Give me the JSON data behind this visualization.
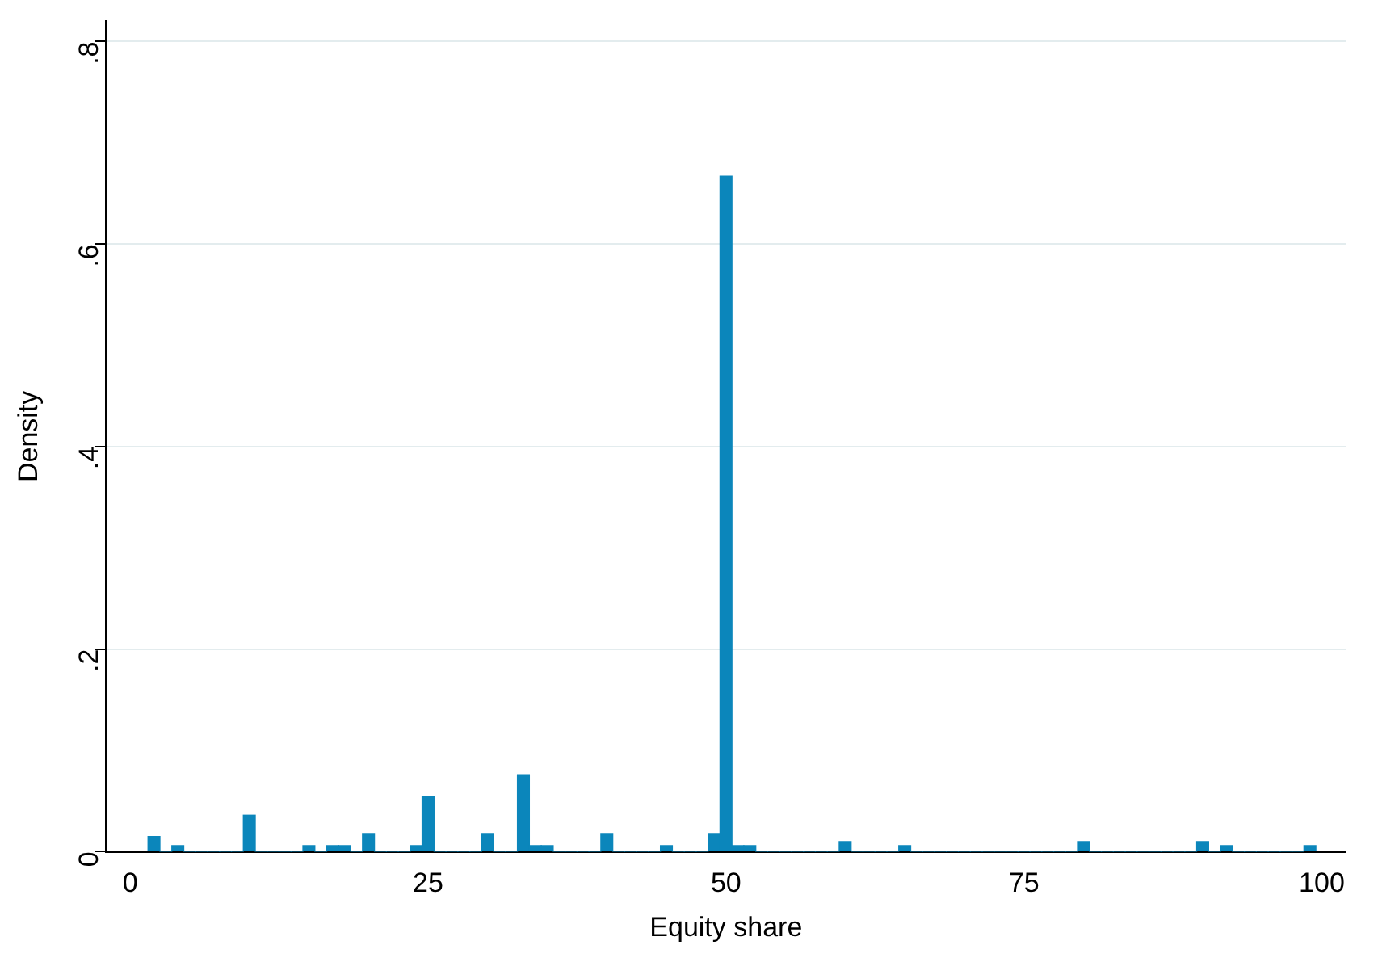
{
  "chart_data": {
    "type": "histogram",
    "xlabel": "Equity share",
    "ylabel": "Density",
    "color": "#0b86bb",
    "bins": [
      1.5,
      2.5,
      3.5,
      4.5,
      5.5,
      6.5,
      7.5,
      8.5,
      9.5,
      10.5,
      11.5,
      12.5,
      13.5,
      14.5,
      15.5,
      16.5,
      17.5,
      18.5,
      19.5,
      20.5,
      21.5,
      22.5,
      23.5,
      24.5,
      25.5,
      26.5,
      27.5,
      28.5,
      29.5,
      30.5,
      31.5,
      32.5,
      33.5,
      34.5,
      35.5,
      36.5,
      37.5,
      38.5,
      39.5,
      40.5,
      41.5,
      42.5,
      43.5,
      44.5,
      45.5,
      46.5,
      47.5,
      48.5,
      49.5,
      50.5,
      51.5,
      52.5,
      53.5,
      54.5,
      55.5,
      56.5,
      57.5,
      58.5,
      59.5,
      60.5,
      61.5,
      62.5,
      63.5,
      64.5,
      65.5,
      66.5,
      67.5,
      68.5,
      69.5,
      70.5,
      71.5,
      72.5,
      73.5,
      74.5,
      75.5,
      76.5,
      77.5,
      78.5,
      79.5,
      80.5,
      81.5,
      82.5,
      83.5,
      84.5,
      85.5,
      86.5,
      87.5,
      88.5,
      89.5,
      90.5,
      91.5,
      92.5,
      93.5,
      94.5,
      95.5,
      96.5,
      97.5,
      98.5,
      99.5
    ],
    "values": [
      0.015,
      0,
      0.006,
      0,
      0,
      0,
      0,
      0,
      0.036,
      0,
      0,
      0,
      0,
      0.006,
      0,
      0.006,
      0.006,
      0,
      0.018,
      0,
      0,
      0,
      0.006,
      0.054,
      0,
      0,
      0,
      0,
      0.018,
      0,
      0,
      0.076,
      0.006,
      0.006,
      0,
      0,
      0,
      0,
      0.018,
      0,
      0,
      0,
      0,
      0.006,
      0,
      0,
      0,
      0.018,
      0.667,
      0.006,
      0.006,
      0,
      0,
      0,
      0,
      0,
      0,
      0,
      0.01,
      0,
      0,
      0,
      0,
      0.006,
      0,
      0,
      0,
      0,
      0,
      0,
      0,
      0,
      0,
      0,
      0,
      0,
      0,
      0,
      0.01,
      0,
      0,
      0,
      0,
      0,
      0,
      0,
      0,
      0,
      0.01,
      0,
      0.006,
      0,
      0,
      0,
      0,
      0,
      0,
      0.006
    ],
    "xlim": [
      -2,
      102
    ],
    "xticks": [
      0,
      25,
      50,
      75,
      100
    ],
    "ylim": [
      0,
      0.82
    ],
    "yticks": [
      0,
      {
        "value": 0.2,
        "label": ".2"
      },
      {
        "value": 0.4,
        "label": ".4"
      },
      {
        "value": 0.6,
        "label": ".6"
      },
      {
        "value": 0.8,
        "label": ".8"
      }
    ],
    "grid": "y"
  }
}
